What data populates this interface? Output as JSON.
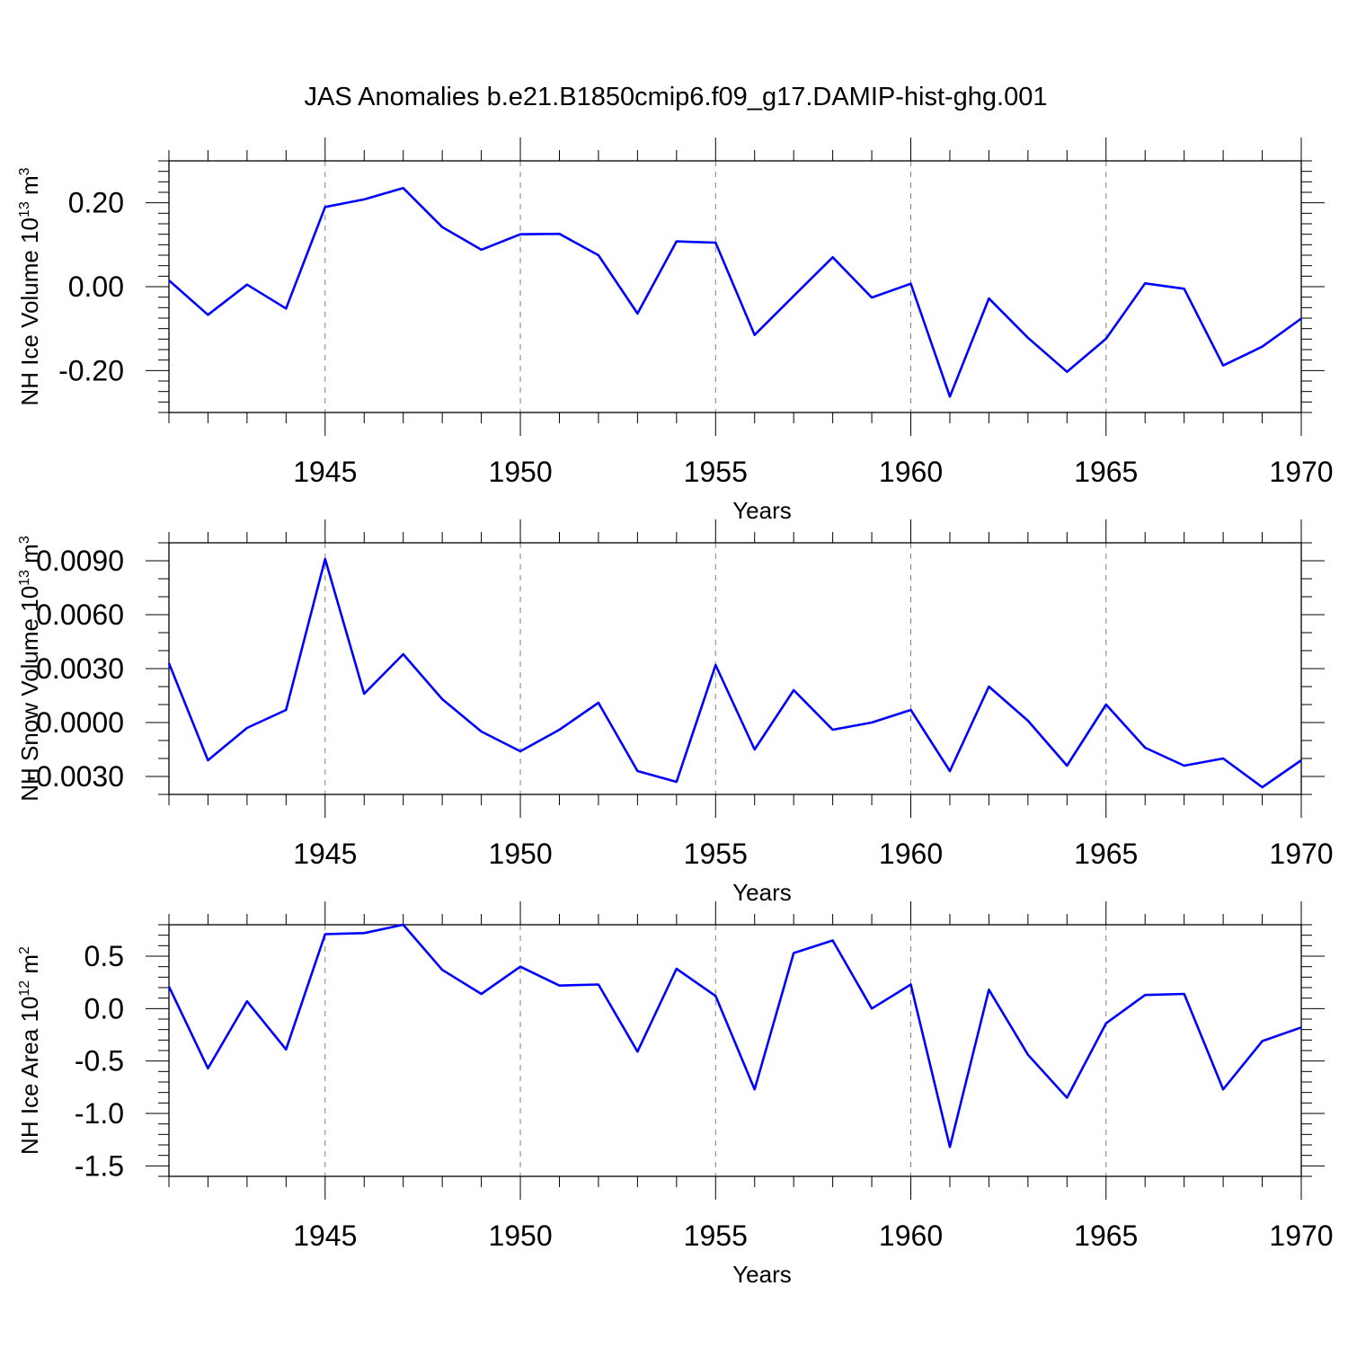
{
  "title": "JAS Anomalies b.e21.B1850cmip6.f09_g17.DAMIP-hist-ghg.001",
  "colors": {
    "series": "#0000ff",
    "axis": "#000000",
    "grid": "#808080"
  },
  "chart_data": [
    {
      "type": "line",
      "title": "JAS Anomalies b.e21.B1850cmip6.f09_g17.DAMIP-hist-ghg.001",
      "xlabel": "Years",
      "ylabel": "NH Ice Volume 10",
      "ylabel_sup": "13",
      "ylabel_unit": "m",
      "ylabel_unit_sup": "3",
      "xlim": [
        1941,
        1970
      ],
      "ylim": [
        -0.3,
        0.3
      ],
      "grid": "vertical dashed at major x ticks",
      "x_ticks": [
        1945,
        1950,
        1955,
        1960,
        1965,
        1970
      ],
      "x_tick_labels": [
        "1945",
        "1950",
        "1955",
        "1960",
        "1965",
        "1970"
      ],
      "y_ticks": [
        -0.2,
        0.0,
        0.2
      ],
      "y_tick_labels": [
        "-0.20",
        "0.00",
        "0.20"
      ],
      "x": [
        1941,
        1942,
        1943,
        1944,
        1945,
        1946,
        1947,
        1948,
        1949,
        1950,
        1951,
        1952,
        1953,
        1954,
        1955,
        1956,
        1957,
        1958,
        1959,
        1960,
        1961,
        1962,
        1963,
        1964,
        1965,
        1966,
        1967,
        1968,
        1969,
        1970
      ],
      "series": [
        {
          "name": "NH Ice Volume",
          "values": [
            0.015,
            -0.067,
            0.005,
            -0.052,
            0.19,
            0.208,
            0.235,
            0.142,
            0.088,
            0.125,
            0.126,
            0.075,
            -0.064,
            0.108,
            0.105,
            -0.115,
            -0.022,
            0.07,
            -0.026,
            0.007,
            -0.262,
            -0.028,
            -0.122,
            -0.203,
            -0.124,
            0.008,
            -0.005,
            -0.188,
            -0.143,
            -0.076
          ]
        }
      ]
    },
    {
      "type": "line",
      "xlabel": "Years",
      "ylabel": "NH Snow Volume 10",
      "ylabel_sup": "13",
      "ylabel_unit": "m",
      "ylabel_unit_sup": "3",
      "xlim": [
        1941,
        1970
      ],
      "ylim": [
        -0.004,
        0.01
      ],
      "grid": "vertical dashed at major x ticks",
      "x_ticks": [
        1945,
        1950,
        1955,
        1960,
        1965,
        1970
      ],
      "x_tick_labels": [
        "1945",
        "1950",
        "1955",
        "1960",
        "1965",
        "1970"
      ],
      "y_ticks": [
        -0.003,
        0.0,
        0.003,
        0.006,
        0.009
      ],
      "y_tick_labels": [
        "-0.0030",
        "0.0000",
        "0.0030",
        "0.0060",
        "0.0090"
      ],
      "x": [
        1941,
        1942,
        1943,
        1944,
        1945,
        1946,
        1947,
        1948,
        1949,
        1950,
        1951,
        1952,
        1953,
        1954,
        1955,
        1956,
        1957,
        1958,
        1959,
        1960,
        1961,
        1962,
        1963,
        1964,
        1965,
        1966,
        1967,
        1968,
        1969,
        1970
      ],
      "series": [
        {
          "name": "NH Snow Volume",
          "values": [
            0.0033,
            -0.0021,
            -0.0003,
            0.0007,
            0.0091,
            0.0016,
            0.0038,
            0.0013,
            -0.0005,
            -0.0016,
            -0.0004,
            0.0011,
            -0.0027,
            -0.0033,
            0.0032,
            -0.0015,
            0.0018,
            -0.0004,
            0.0,
            0.0007,
            -0.0027,
            0.002,
            0.0001,
            -0.0024,
            0.001,
            -0.0014,
            -0.0024,
            -0.002,
            -0.0036,
            -0.0021
          ]
        }
      ]
    },
    {
      "type": "line",
      "xlabel": "Years",
      "ylabel": "NH Ice Area 10",
      "ylabel_sup": "12",
      "ylabel_unit": "m",
      "ylabel_unit_sup": "2",
      "xlim": [
        1941,
        1970
      ],
      "ylim": [
        -1.6,
        0.8
      ],
      "grid": "vertical dashed at major x ticks",
      "x_ticks": [
        1945,
        1950,
        1955,
        1960,
        1965,
        1970
      ],
      "x_tick_labels": [
        "1945",
        "1950",
        "1955",
        "1960",
        "1965",
        "1970"
      ],
      "y_ticks": [
        -1.5,
        -1.0,
        -0.5,
        0.0,
        0.5
      ],
      "y_tick_labels": [
        "-1.5",
        "-1.0",
        "-0.5",
        "0.0",
        "0.5"
      ],
      "x": [
        1941,
        1942,
        1943,
        1944,
        1945,
        1946,
        1947,
        1948,
        1949,
        1950,
        1951,
        1952,
        1953,
        1954,
        1955,
        1956,
        1957,
        1958,
        1959,
        1960,
        1961,
        1962,
        1963,
        1964,
        1965,
        1966,
        1967,
        1968,
        1969,
        1970
      ],
      "series": [
        {
          "name": "NH Ice Area",
          "values": [
            0.21,
            -0.57,
            0.07,
            -0.39,
            0.71,
            0.72,
            0.8,
            0.37,
            0.14,
            0.4,
            0.22,
            0.23,
            -0.41,
            0.38,
            0.12,
            -0.77,
            0.53,
            0.65,
            0.0,
            0.23,
            -1.32,
            0.18,
            -0.44,
            -0.85,
            -0.14,
            0.13,
            0.14,
            -0.77,
            -0.31,
            -0.18
          ]
        }
      ]
    }
  ]
}
